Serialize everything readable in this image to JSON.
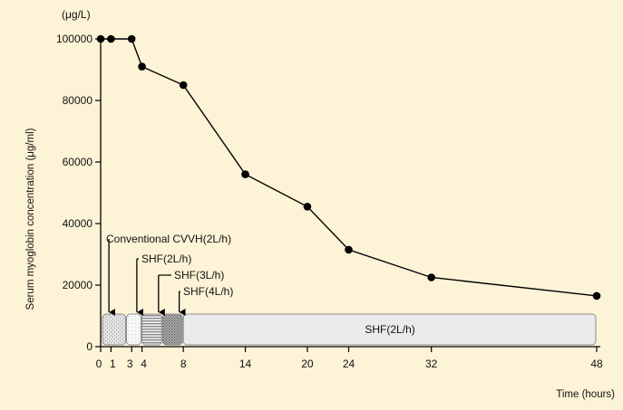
{
  "chart_data": {
    "type": "line",
    "title": "",
    "xlabel": "Time (hours)",
    "ylabel": "Serum myoglobin concentration (μg/ml)",
    "y_unit_label": "(μg/L)",
    "xlim": [
      0,
      48
    ],
    "ylim": [
      0,
      100000
    ],
    "x_ticks": [
      0,
      1,
      3,
      4,
      8,
      14,
      20,
      24,
      32,
      48
    ],
    "y_ticks": [
      0,
      20000,
      40000,
      60000,
      80000,
      100000
    ],
    "grid": false,
    "series": [
      {
        "points": [
          {
            "x": 0,
            "y": 100000
          },
          {
            "x": 1,
            "y": 100000
          },
          {
            "x": 3,
            "y": 100000
          },
          {
            "x": 4,
            "y": 91000
          },
          {
            "x": 8,
            "y": 85000
          },
          {
            "x": 14,
            "y": 56000
          },
          {
            "x": 20,
            "y": 45500
          },
          {
            "x": 24,
            "y": 31500
          },
          {
            "x": 32,
            "y": 22500
          },
          {
            "x": 48,
            "y": 16500
          }
        ]
      }
    ],
    "therapy_periods": [
      {
        "label": "Conventional CVVH(2L/h)",
        "start": 0,
        "end": 2.5,
        "pattern": "light-stipple"
      },
      {
        "label": "SHF(2L/h)",
        "start": 2.5,
        "end": 4,
        "pattern": "white"
      },
      {
        "label": "SHF(3L/h)",
        "start": 4,
        "end": 6,
        "pattern": "stripes"
      },
      {
        "label": "SHF(4L/h)",
        "start": 6,
        "end": 8,
        "pattern": "dark-stipple"
      },
      {
        "label": "SHF(2L/h)",
        "start": 8,
        "end": 48,
        "pattern": "fine-stipple"
      }
    ],
    "colors": {
      "background": "#fdf3d6",
      "line": "#000000",
      "marker": "#000000"
    }
  }
}
